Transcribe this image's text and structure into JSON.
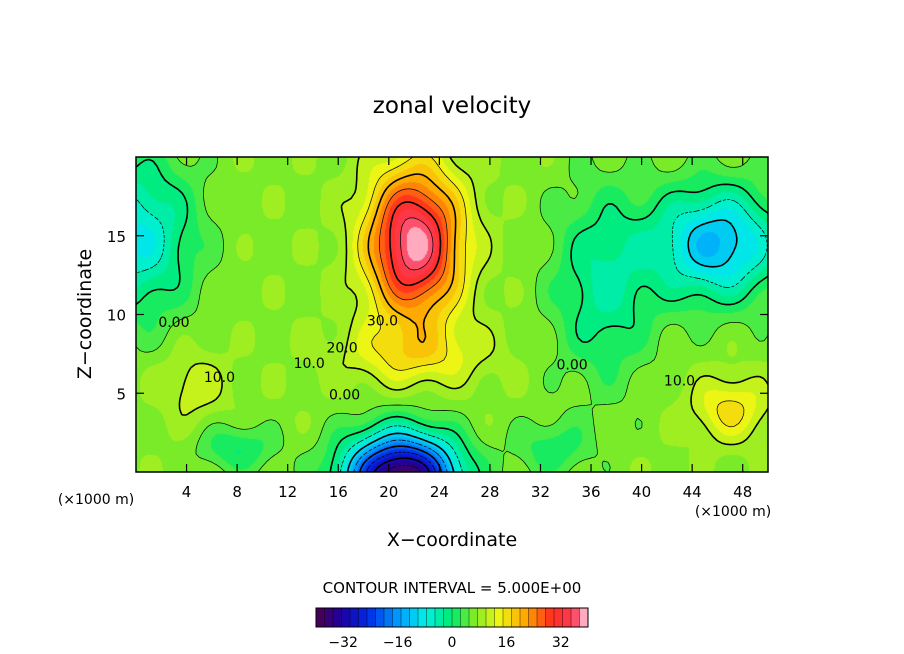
{
  "chart_data": {
    "type": "heatmap",
    "title": "zonal velocity",
    "xlabel": "X−coordinate",
    "ylabel": "Z−coordinate",
    "x_unit": "(×1000 m)",
    "z_unit": "(×1000 m)",
    "xlim": [
      0,
      50
    ],
    "ylim": [
      0,
      20
    ],
    "x_ticks": [
      "4",
      "8",
      "12",
      "16",
      "20",
      "24",
      "28",
      "32",
      "36",
      "40",
      "44",
      "48"
    ],
    "x_tick_values": [
      4,
      8,
      12,
      16,
      20,
      24,
      28,
      32,
      36,
      40,
      44,
      48
    ],
    "y_ticks": [
      "5",
      "10",
      "15"
    ],
    "y_tick_values": [
      5,
      10,
      15
    ],
    "contour_interval_label": "CONTOUR INTERVAL = 5.000E+00",
    "contour_interval": 5.0,
    "contour_labels": [
      {
        "text": "30.0",
        "x": 19.5,
        "z": 9.3
      },
      {
        "text": "20.0",
        "x": 16.3,
        "z": 7.6
      },
      {
        "text": "10.0",
        "x": 13.7,
        "z": 6.6
      },
      {
        "text": "10.0",
        "x": 6.6,
        "z": 5.7
      },
      {
        "text": "0.00",
        "x": 3.0,
        "z": 9.2
      },
      {
        "text": "0.00",
        "x": 16.5,
        "z": 4.6
      },
      {
        "text": "0.00",
        "x": 34.5,
        "z": 6.5
      },
      {
        "text": "10.0",
        "x": 43.0,
        "z": 5.5
      }
    ],
    "colorbar": {
      "ticks": [
        "−32",
        "−16",
        "0",
        "16",
        "32"
      ],
      "tick_values": [
        -32,
        -16,
        0,
        16,
        32
      ],
      "range": [
        -40,
        40
      ]
    },
    "features": [
      {
        "kind": "jet-max",
        "x": 22,
        "z": 14,
        "value": 34
      },
      {
        "kind": "jet-min",
        "x": 21,
        "z": 1.0,
        "value": -38
      },
      {
        "kind": "weak-negative",
        "x": 45,
        "z": 14.5,
        "value": -12
      },
      {
        "kind": "weak-negative",
        "x": 1,
        "z": 15,
        "value": -8
      },
      {
        "kind": "weak-positive",
        "x": 47,
        "z": 4.5,
        "value": 14
      },
      {
        "kind": "weak-positive",
        "x": 4.5,
        "z": 5.5,
        "value": 11
      }
    ]
  }
}
